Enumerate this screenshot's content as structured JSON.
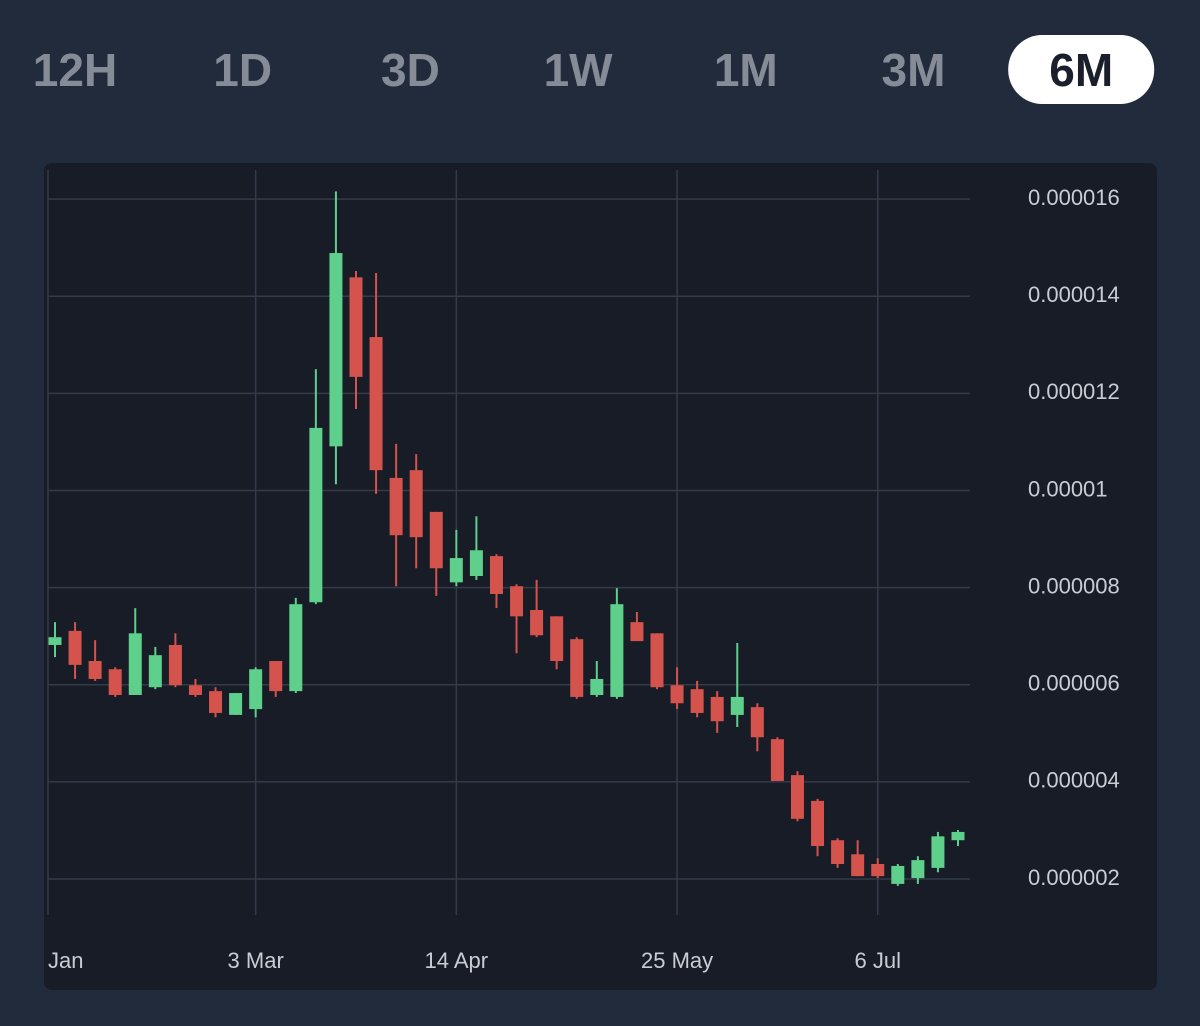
{
  "tabs": {
    "items": [
      "12H",
      "1D",
      "3D",
      "1W",
      "1M",
      "3M",
      "6M"
    ],
    "selected": 6
  },
  "chart_data": {
    "type": "candlestick",
    "categories": [
      "Jan",
      null,
      null,
      null,
      null,
      null,
      null,
      null,
      null,
      null,
      "3 Mar",
      null,
      null,
      null,
      null,
      null,
      null,
      null,
      null,
      null,
      "14 Apr",
      null,
      null,
      null,
      null,
      null,
      null,
      null,
      null,
      null,
      null,
      "25 May",
      null,
      null,
      null,
      null,
      null,
      null,
      null,
      null,
      null,
      "6 Jul",
      null,
      null,
      null,
      null
    ],
    "series": [
      {
        "open": [
          6.82e-06,
          7.11e-06,
          6.49e-06,
          6.32e-06,
          5.79e-06,
          5.95e-06,
          6.82e-06,
          5.99e-06,
          5.87e-06,
          5.38e-06,
          5.5e-06,
          6.49e-06,
          5.87e-06,
          7.7e-06,
          1.091e-05,
          1.439e-05,
          1.316e-05,
          1.026e-05,
          1.042e-05,
          9.56e-06,
          8.11e-06,
          8.24e-06,
          8.65e-06,
          8.03e-06,
          7.54e-06,
          7.41e-06,
          6.94e-06,
          5.79e-06,
          5.75e-06,
          7.29e-06,
          7.06e-06,
          5.99e-06,
          5.91e-06,
          5.75e-06,
          5.38e-06,
          5.54e-06,
          4.88e-06,
          4.14e-06,
          3.61e-06,
          2.8e-06,
          2.51e-06,
          2.31e-06,
          1.9e-06,
          2.02e-06,
          2.23e-06,
          2.8e-06
        ],
        "high": [
          7.29e-06,
          7.29e-06,
          6.92e-06,
          6.36e-06,
          7.58e-06,
          6.78e-06,
          7.06e-06,
          6.12e-06,
          5.95e-06,
          5.83e-06,
          6.36e-06,
          6.49e-06,
          7.79e-06,
          1.25e-05,
          1.616e-05,
          1.452e-05,
          1.448e-05,
          1.096e-05,
          1.075e-05,
          9.56e-06,
          9.19e-06,
          9.47e-06,
          8.69e-06,
          8.07e-06,
          8.16e-06,
          7.41e-06,
          6.98e-06,
          6.49e-06,
          7.99e-06,
          7.5e-06,
          7.06e-06,
          6.36e-06,
          6.08e-06,
          5.87e-06,
          6.86e-06,
          5.62e-06,
          4.92e-06,
          4.22e-06,
          3.65e-06,
          2.84e-06,
          2.8e-06,
          2.43e-06,
          2.31e-06,
          2.47e-06,
          2.97e-06,
          3.01e-06
        ],
        "low": [
          6.57e-06,
          6.12e-06,
          6.08e-06,
          5.75e-06,
          5.79e-06,
          5.91e-06,
          5.95e-06,
          5.75e-06,
          5.33e-06,
          5.38e-06,
          5.33e-06,
          5.75e-06,
          5.83e-06,
          7.66e-06,
          1.013e-05,
          1.168e-05,
          9.93e-06,
          8.03e-06,
          8.4e-06,
          7.83e-06,
          8.03e-06,
          8.16e-06,
          7.58e-06,
          6.65e-06,
          6.98e-06,
          6.32e-06,
          5.71e-06,
          5.75e-06,
          5.71e-06,
          6.9e-06,
          5.91e-06,
          5.5e-06,
          5.33e-06,
          5.01e-06,
          5.13e-06,
          4.63e-06,
          4.02e-06,
          3.19e-06,
          2.47e-06,
          2.23e-06,
          2.06e-06,
          2.02e-06,
          1.86e-06,
          1.9e-06,
          2.14e-06,
          2.68e-06
        ],
        "close": [
          6.98e-06,
          6.41e-06,
          6.12e-06,
          5.79e-06,
          7.06e-06,
          6.61e-06,
          5.99e-06,
          5.79e-06,
          5.42e-06,
          5.83e-06,
          6.32e-06,
          5.87e-06,
          7.66e-06,
          1.129e-05,
          1.489e-05,
          1.234e-05,
          1.042e-05,
          9.08e-06,
          9.04e-06,
          8.4e-06,
          8.61e-06,
          8.77e-06,
          7.87e-06,
          7.41e-06,
          7.02e-06,
          6.49e-06,
          5.75e-06,
          6.12e-06,
          7.66e-06,
          6.9e-06,
          5.95e-06,
          5.62e-06,
          5.42e-06,
          5.25e-06,
          5.75e-06,
          4.92e-06,
          4.02e-06,
          3.24e-06,
          2.68e-06,
          2.31e-06,
          2.06e-06,
          2.06e-06,
          2.27e-06,
          2.39e-06,
          2.88e-06,
          2.97e-06
        ]
      }
    ],
    "up_color": "#5fcf8c",
    "down_color": "#d4534d",
    "ylim": [
      1.26e-06,
      1.66e-05
    ],
    "yticks": [
      2e-06,
      4e-06,
      6e-06,
      8e-06,
      1e-05,
      1.2e-05,
      1.4e-05,
      1.6e-05
    ],
    "grid": true
  }
}
